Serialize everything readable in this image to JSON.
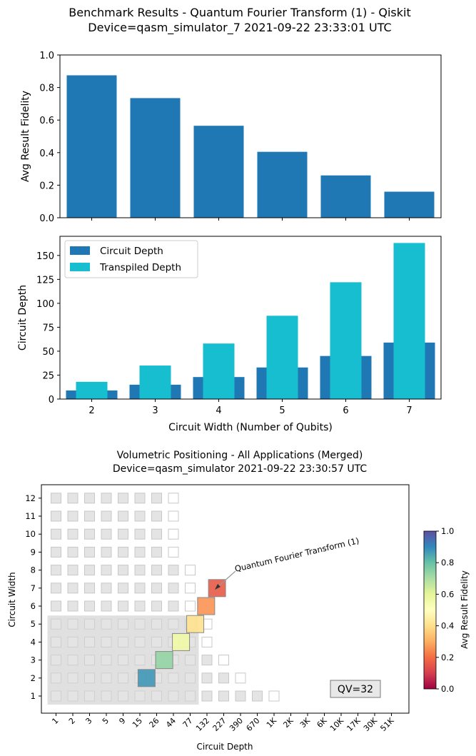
{
  "title_lines": [
    "Benchmark Results - Quantum Fourier Transform (1) - Qiskit",
    "Device=qasm_simulator_7  2021-09-22 23:33:01 UTC"
  ],
  "chart_data": [
    {
      "type": "bar",
      "title": "",
      "ylabel": "Avg Result Fidelity",
      "xlabel": "",
      "categories": [
        "2",
        "3",
        "4",
        "5",
        "6",
        "7"
      ],
      "values": [
        0.875,
        0.735,
        0.565,
        0.405,
        0.26,
        0.16
      ],
      "ylim": [
        0,
        1
      ],
      "yticks": [
        "0.0",
        "0.2",
        "0.4",
        "0.6",
        "0.8",
        "1.0"
      ],
      "color": "#1f77b4"
    },
    {
      "type": "bar",
      "title": "",
      "ylabel": "Circuit Depth",
      "xlabel": "Circuit Width (Number of Qubits)",
      "categories": [
        "2",
        "3",
        "4",
        "5",
        "6",
        "7"
      ],
      "ylim": [
        0,
        170
      ],
      "yticks": [
        "0",
        "25",
        "50",
        "75",
        "100",
        "125",
        "150"
      ],
      "legend": "top-left",
      "series": [
        {
          "name": "Circuit Depth",
          "values": [
            9,
            15,
            23,
            33,
            45,
            59
          ],
          "color": "#1f77b4"
        },
        {
          "name": "Transpiled Depth",
          "values": [
            18,
            35,
            58,
            87,
            122,
            163
          ],
          "color": "#17becf"
        }
      ]
    },
    {
      "type": "heatmap",
      "title_lines": [
        "Volumetric Positioning - All Applications (Merged)",
        "Device=qasm_simulator  2021-09-22 23:30:57 UTC"
      ],
      "xlabel": "Circuit Depth",
      "ylabel": "Circuit Width",
      "x_ticks": [
        "1",
        "2",
        "3",
        "5",
        "9",
        "15",
        "26",
        "44",
        "77",
        "132",
        "227",
        "390",
        "670",
        "1K",
        "2K",
        "3K",
        "6K",
        "10K",
        "17K",
        "30K",
        "51K"
      ],
      "y_ticks": [
        "1",
        "2",
        "3",
        "4",
        "5",
        "6",
        "7",
        "8",
        "9",
        "10",
        "11",
        "12"
      ],
      "annotation": "Quantum Fourier Transform (1)",
      "qv_label": "QV=32",
      "colorbar": {
        "label": "Avg Result Fidelity",
        "range": [
          0,
          1
        ],
        "ticks": [
          "0.0",
          "0.2",
          "0.4",
          "0.6",
          "0.8",
          "1.0"
        ]
      },
      "quantum_volume_region": {
        "max_width": 5,
        "max_depth_index": 8
      },
      "grid_max_depth_index": {
        "1": 13,
        "2": 11,
        "3": 10,
        "4": 9,
        "5": 9,
        "6": 8,
        "7": 8,
        "8": 8,
        "9": 7,
        "10": 7,
        "11": 7,
        "12": 7
      },
      "points": [
        {
          "width": 2,
          "depth_index": 5.4,
          "fidelity": 0.875
        },
        {
          "width": 3,
          "depth_index": 6.45,
          "fidelity": 0.735
        },
        {
          "width": 4,
          "depth_index": 7.45,
          "fidelity": 0.565
        },
        {
          "width": 5,
          "depth_index": 8.3,
          "fidelity": 0.405
        },
        {
          "width": 6,
          "depth_index": 8.95,
          "fidelity": 0.26
        },
        {
          "width": 7,
          "depth_index": 9.6,
          "fidelity": 0.16
        }
      ]
    }
  ]
}
